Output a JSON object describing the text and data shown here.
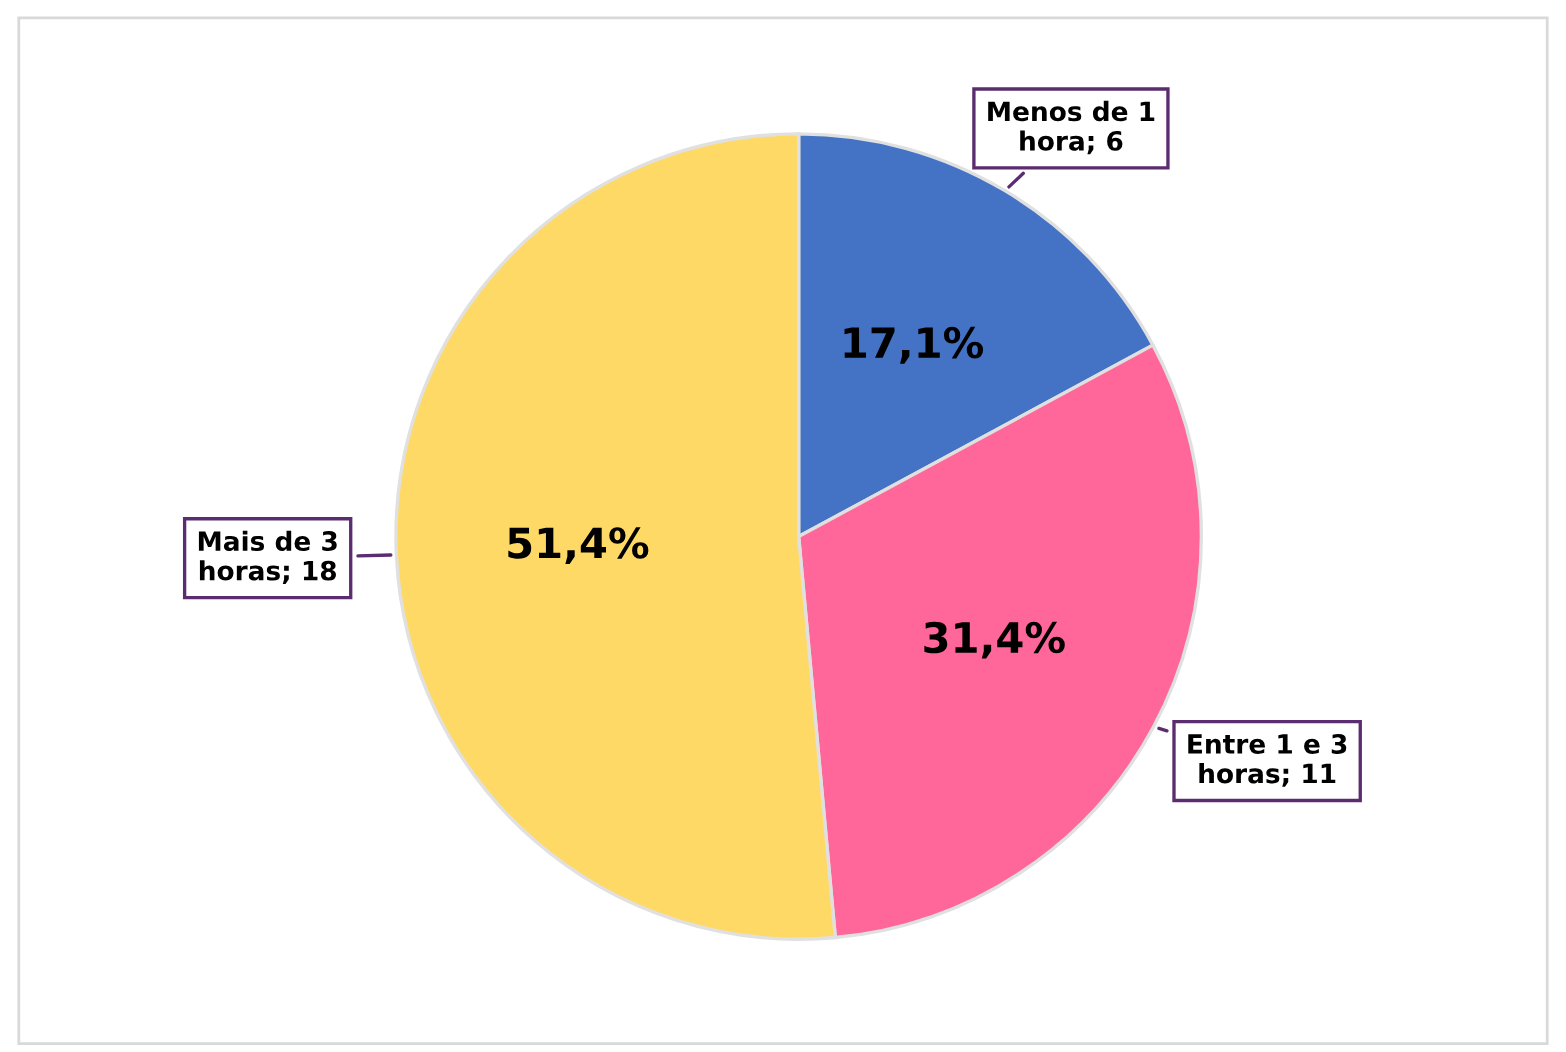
{
  "chart_data": {
    "type": "pie",
    "categories": [
      "Menos de 1 hora; 6",
      "Entre 1 e 3 horas; 11",
      "Mais de 3 horas; 18"
    ],
    "values": [
      17.1,
      31.4,
      51.4
    ],
    "colors": [
      "#4472c4",
      "#ff6699",
      "#ffd966"
    ],
    "value_labels": [
      "17,1%",
      "31,4%",
      "51,4%"
    ],
    "legend": false
  }
}
